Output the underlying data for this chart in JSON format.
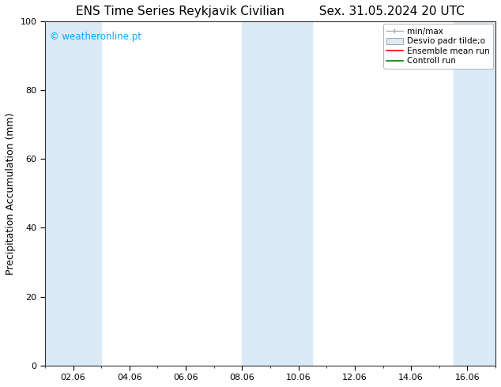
{
  "title_left": "ENS Time Series Reykjavik Civilian",
  "title_right": "Sex. 31.05.2024 20 UTC",
  "ylabel": "Precipitation Accumulation (mm)",
  "ylim": [
    0,
    100
  ],
  "yticks": [
    0,
    20,
    40,
    60,
    80,
    100
  ],
  "xtick_labels": [
    "02.06",
    "04.06",
    "06.06",
    "08.06",
    "10.06",
    "12.06",
    "14.06",
    "16.06"
  ],
  "xtick_positions": [
    1,
    3,
    5,
    7,
    9,
    11,
    13,
    15
  ],
  "xlim": [
    0,
    16
  ],
  "watermark_text": "© weatheronline.pt",
  "watermark_color": "#00aaff",
  "bg_color": "#ffffff",
  "plot_bg_color": "#ffffff",
  "band_color": "#daeaf7",
  "legend_labels": [
    "min/max",
    "Desvio padr tilde;o",
    "Ensemble mean run",
    "Controll run"
  ],
  "title_fontsize": 11,
  "label_fontsize": 9,
  "tick_fontsize": 8,
  "shaded_bands": [
    {
      "start": 0,
      "end": 2.0
    },
    {
      "start": 7.0,
      "end": 9.5
    },
    {
      "start": 14.5,
      "end": 16.0
    }
  ],
  "minor_xticks": [
    0,
    1,
    2,
    3,
    4,
    5,
    6,
    7,
    8,
    9,
    10,
    11,
    12,
    13,
    14,
    15,
    16
  ]
}
